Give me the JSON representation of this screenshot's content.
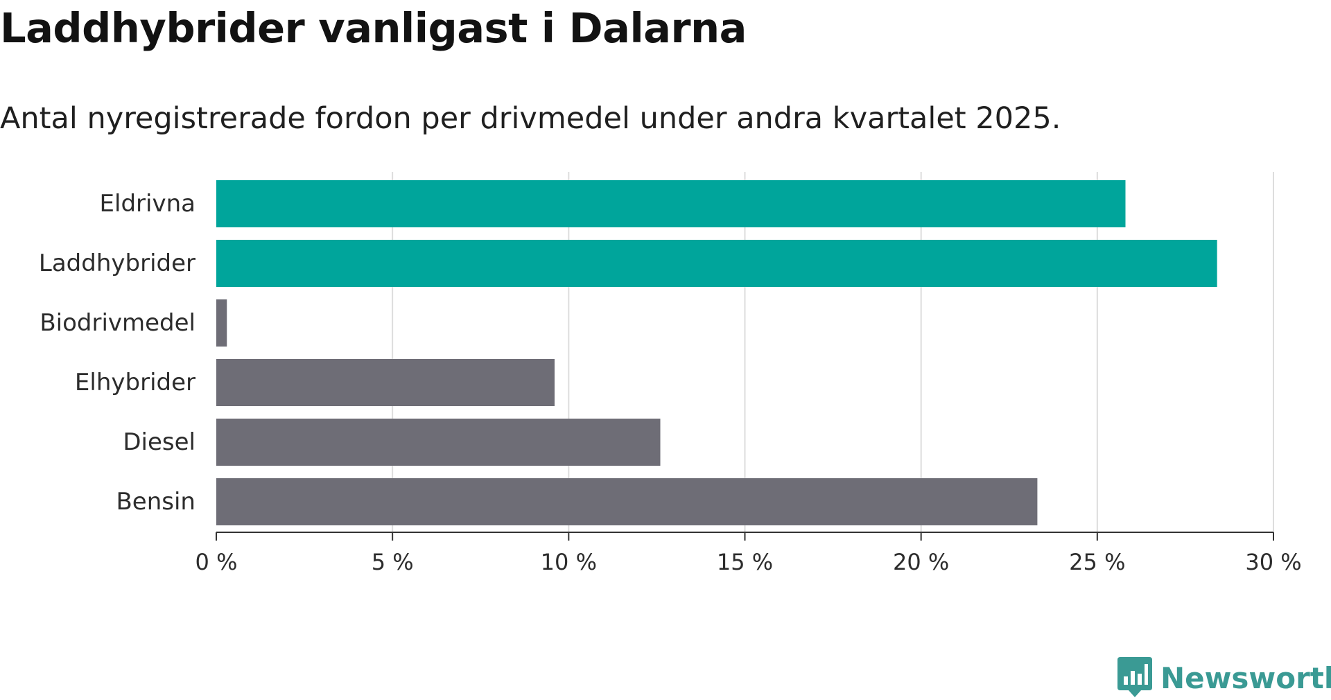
{
  "header": {
    "title": "Laddhybrider vanligast i Dalarna",
    "subtitle": "Antal nyregistrerade fordon per drivmedel under andra kvartalet 2025."
  },
  "colors": {
    "highlight": "#00a59b",
    "default": "#6e6d76",
    "gridline": "#dddddd",
    "axis": "#333333",
    "brand": "#3a9a94"
  },
  "brand": {
    "name": "Newsworthy",
    "icon": "newsworthy-logo-icon"
  },
  "chart_data": {
    "type": "bar",
    "orientation": "horizontal",
    "categories": [
      "Eldrivna",
      "Laddhybrider",
      "Biodrivmedel",
      "Elhybrider",
      "Diesel",
      "Bensin"
    ],
    "values": [
      25.8,
      28.4,
      0.3,
      9.6,
      12.6,
      23.3
    ],
    "highlighted": [
      "Eldrivna",
      "Laddhybrider"
    ],
    "xlim": [
      0,
      30
    ],
    "xticks": [
      0,
      5,
      10,
      15,
      20,
      25,
      30
    ],
    "xtick_labels": [
      "0 %",
      "5 %",
      "10 %",
      "15 %",
      "20 %",
      "25 %",
      "30 %"
    ],
    "xlabel": "",
    "ylabel": "",
    "grid": "vertical",
    "legend": "none"
  }
}
